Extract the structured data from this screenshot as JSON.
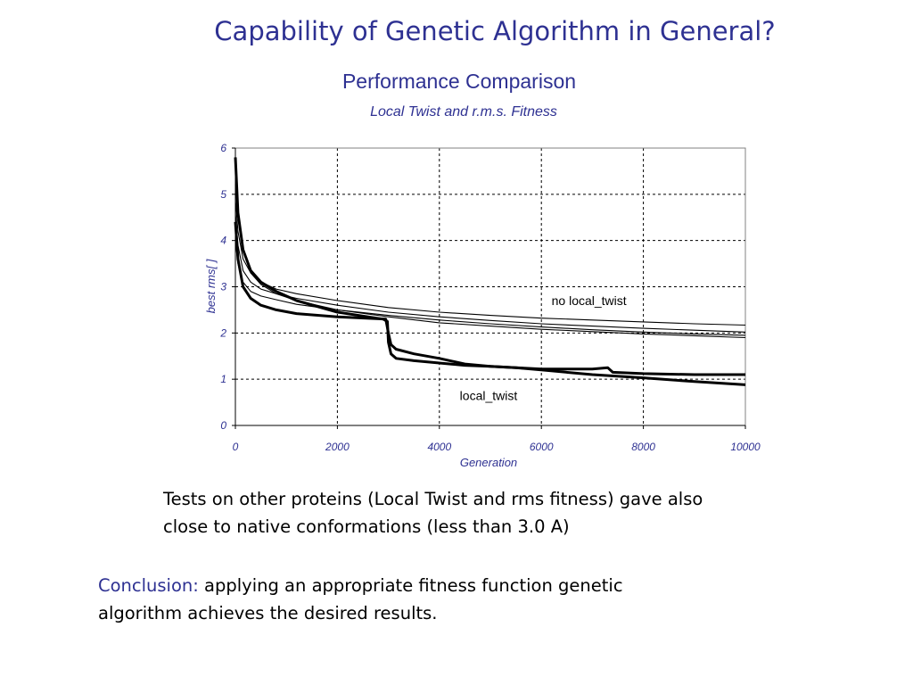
{
  "slide": {
    "title": "Capability of Genetic Algorithm in General?",
    "body_line1": "Tests on other proteins (Local Twist and rms fitness) gave also",
    "body_line2": "close to native conformations (less than 3.0 A)",
    "conclusion_label": "Conclusion:",
    "conclusion_line1": " applying an appropriate fitness function genetic",
    "conclusion_line2": "algorithm achieves the desired results."
  },
  "colors": {
    "title": "#2e3192",
    "axis_text": "#2e3192",
    "grid": "#000000",
    "series": "#000000"
  },
  "chart_data": {
    "type": "line",
    "title": "Performance Comparison",
    "subtitle": "Local Twist and r.m.s. Fitness",
    "xlabel": "Generation",
    "ylabel": "best rms[ ]",
    "xlim": [
      0,
      10000
    ],
    "ylim": [
      0,
      6
    ],
    "x_ticks": [
      0,
      2000,
      4000,
      6000,
      8000,
      10000
    ],
    "y_ticks": [
      0,
      1,
      2,
      3,
      4,
      5,
      6
    ],
    "grid": true,
    "grid_style": "dashed",
    "legend": "none",
    "annotations": [
      {
        "text": "no local_twist",
        "x": 6200,
        "y": 2.6
      },
      {
        "text": "local_twist",
        "x": 4400,
        "y": 0.55
      }
    ],
    "series": [
      {
        "group": "no local_twist",
        "weight": "thin",
        "x": [
          0,
          50,
          150,
          300,
          500,
          800,
          1200,
          2000,
          3000,
          4000,
          5000,
          6000,
          7000,
          8000,
          9000,
          10000
        ],
        "y": [
          4.9,
          4.2,
          3.6,
          3.3,
          3.1,
          2.95,
          2.85,
          2.7,
          2.55,
          2.45,
          2.38,
          2.32,
          2.28,
          2.24,
          2.2,
          2.17
        ]
      },
      {
        "group": "no local_twist",
        "weight": "thin",
        "x": [
          0,
          50,
          150,
          300,
          500,
          800,
          1200,
          2000,
          3000,
          4000,
          5000,
          6000,
          7000,
          8000,
          9000,
          10000
        ],
        "y": [
          4.6,
          3.9,
          3.35,
          3.1,
          2.95,
          2.85,
          2.75,
          2.6,
          2.45,
          2.35,
          2.27,
          2.2,
          2.15,
          2.1,
          2.06,
          2.02
        ]
      },
      {
        "group": "no local_twist",
        "weight": "thin",
        "x": [
          0,
          50,
          150,
          300,
          500,
          800,
          1200,
          2000,
          3000,
          4000,
          5000,
          6000,
          7000,
          8000,
          9000,
          10000
        ],
        "y": [
          5.2,
          4.5,
          3.8,
          3.3,
          3.05,
          2.85,
          2.7,
          2.5,
          2.38,
          2.28,
          2.2,
          2.13,
          2.07,
          2.02,
          1.98,
          1.95
        ]
      },
      {
        "group": "no local_twist",
        "weight": "thin",
        "x": [
          0,
          50,
          150,
          300,
          500,
          800,
          1200,
          2000,
          3000,
          4000,
          5000,
          6000,
          7000,
          8000,
          9000,
          10000
        ],
        "y": [
          4.0,
          3.5,
          3.1,
          2.9,
          2.8,
          2.72,
          2.62,
          2.5,
          2.35,
          2.22,
          2.15,
          2.08,
          2.03,
          1.98,
          1.94,
          1.9
        ]
      },
      {
        "group": "local_twist",
        "weight": "thick",
        "x": [
          0,
          50,
          150,
          300,
          500,
          800,
          1200,
          2000,
          2900,
          2980,
          3000,
          3050,
          3150,
          3500,
          4000,
          4500,
          5000,
          5500,
          6000,
          7000,
          7300,
          7400,
          8000,
          9000,
          10000
        ],
        "y": [
          5.8,
          4.6,
          3.8,
          3.35,
          3.1,
          2.9,
          2.7,
          2.45,
          2.3,
          2.25,
          1.8,
          1.55,
          1.45,
          1.4,
          1.35,
          1.3,
          1.28,
          1.25,
          1.22,
          1.22,
          1.25,
          1.15,
          1.12,
          1.1,
          1.1
        ]
      },
      {
        "group": "local_twist",
        "weight": "thick",
        "x": [
          0,
          50,
          150,
          300,
          500,
          800,
          1200,
          2000,
          2950,
          3000,
          3050,
          3150,
          3500,
          4000,
          4500,
          5000,
          5500,
          6000,
          7000,
          8000,
          9000,
          10000
        ],
        "y": [
          4.4,
          3.6,
          3.0,
          2.75,
          2.6,
          2.5,
          2.42,
          2.35,
          2.3,
          2.0,
          1.75,
          1.65,
          1.55,
          1.45,
          1.33,
          1.28,
          1.25,
          1.2,
          1.1,
          1.03,
          0.95,
          0.88
        ]
      }
    ]
  }
}
